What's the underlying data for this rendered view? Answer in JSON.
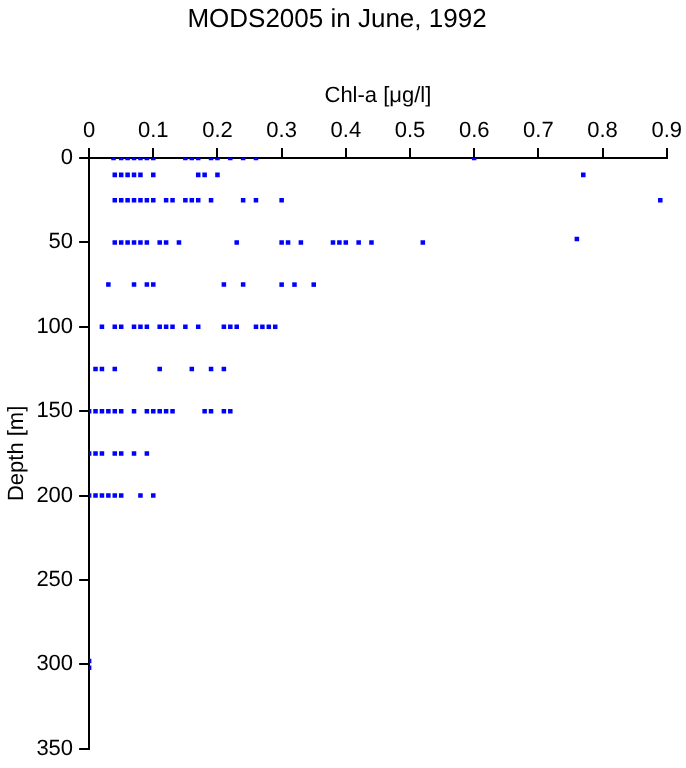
{
  "chart_data": {
    "type": "scatter",
    "title": "MODS2005 in June, 1992",
    "xlabel": "Chl-a [μg/l]",
    "ylabel": "Depth [m]",
    "series": [
      {
        "color": "#0000ff",
        "x": [
          0.038,
          0.05,
          0.06,
          0.07,
          0.08,
          0.09,
          0.1,
          0.15,
          0.16,
          0.17,
          0.19,
          0.2,
          0.22,
          0.24,
          0.26,
          0.6,
          0.04,
          0.05,
          0.06,
          0.07,
          0.08,
          0.1,
          0.17,
          0.18,
          0.2,
          0.77,
          0.04,
          0.05,
          0.06,
          0.07,
          0.08,
          0.09,
          0.1,
          0.12,
          0.13,
          0.15,
          0.16,
          0.17,
          0.19,
          0.24,
          0.26,
          0.3,
          0.89,
          0.04,
          0.05,
          0.06,
          0.07,
          0.08,
          0.09,
          0.11,
          0.12,
          0.14,
          0.23,
          0.3,
          0.31,
          0.33,
          0.38,
          0.39,
          0.4,
          0.42,
          0.44,
          0.52,
          0.76,
          0.03,
          0.07,
          0.09,
          0.1,
          0.21,
          0.24,
          0.3,
          0.32,
          0.35,
          0.02,
          0.04,
          0.05,
          0.07,
          0.08,
          0.09,
          0.11,
          0.12,
          0.13,
          0.15,
          0.17,
          0.21,
          0.22,
          0.23,
          0.26,
          0.27,
          0.28,
          0.29,
          0.01,
          0.02,
          0.04,
          0.11,
          0.16,
          0.19,
          0.21,
          0,
          0.01,
          0.02,
          0.03,
          0.04,
          0.05,
          0.07,
          0.09,
          0.1,
          0.11,
          0.12,
          0.13,
          0.18,
          0.19,
          0.21,
          0.22,
          0,
          0.01,
          0.02,
          0.04,
          0.05,
          0.07,
          0.09,
          0,
          0.01,
          0.02,
          0.03,
          0.04,
          0.05,
          0.08,
          0.1,
          0,
          0
        ],
        "values": [
          0,
          0,
          0,
          0,
          0,
          0,
          0,
          0,
          0,
          0,
          0,
          0,
          0,
          0,
          0,
          0,
          10,
          10,
          10,
          10,
          10,
          10,
          10,
          10,
          10,
          10,
          25,
          25,
          25,
          25,
          25,
          25,
          25,
          25,
          25,
          25,
          25,
          25,
          25,
          25,
          25,
          25,
          25,
          50,
          50,
          50,
          50,
          50,
          50,
          50,
          50,
          50,
          50,
          50,
          50,
          50,
          50,
          50,
          50,
          50,
          50,
          50,
          48,
          75,
          75,
          75,
          75,
          75,
          75,
          75,
          75,
          75,
          100,
          100,
          100,
          100,
          100,
          100,
          100,
          100,
          100,
          100,
          100,
          100,
          100,
          100,
          100,
          100,
          100,
          100,
          125,
          125,
          125,
          125,
          125,
          125,
          125,
          150,
          150,
          150,
          150,
          150,
          150,
          150,
          150,
          150,
          150,
          150,
          150,
          150,
          150,
          150,
          150,
          175,
          175,
          175,
          175,
          175,
          175,
          175,
          200,
          200,
          200,
          200,
          200,
          200,
          200,
          200,
          298,
          302
        ]
      }
    ],
    "xlim": [
      0,
      0.9
    ],
    "xticks": [
      0,
      0.1,
      0.2,
      0.3,
      0.4,
      0.5,
      0.6,
      0.7,
      0.8,
      0.9
    ],
    "ylim": [
      350,
      0
    ],
    "yticks": [
      0,
      50,
      100,
      150,
      200,
      250,
      300,
      350
    ],
    "grid": false,
    "legend": false,
    "marker": "square"
  }
}
